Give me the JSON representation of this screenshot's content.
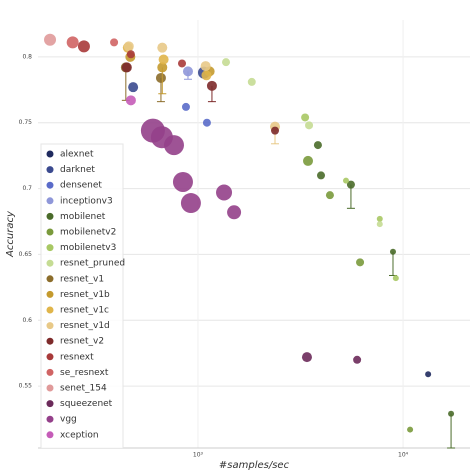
{
  "chart_data": {
    "type": "scatter",
    "x_label": "#samples/sec",
    "y_label": "Accuracy",
    "xscale": "log",
    "xlim": [
      166,
      21200
    ],
    "ylim": [
      0.503,
      0.828
    ],
    "xticks": [
      {
        "value": 1000,
        "label": "10³"
      },
      {
        "value": 10000,
        "label": "10⁴"
      }
    ],
    "yticks": [
      0.55,
      0.6,
      0.65,
      0.7,
      0.75,
      0.8
    ],
    "grid": true,
    "legend": "left",
    "series": [
      {
        "name": "alexnet",
        "color": "#1f2a5e",
        "x": [
          13250
        ],
        "values": [
          0.559
        ],
        "sizes": [
          3
        ],
        "errors": [
          null
        ]
      },
      {
        "name": "darknet",
        "color": "#3b4a8f",
        "x": [
          483,
          1070
        ],
        "values": [
          0.777,
          0.788
        ],
        "sizes": [
          5,
          6
        ],
        "errors": [
          null,
          null
        ]
      },
      {
        "name": "densenet",
        "color": "#5a6bc9",
        "x": [
          874,
          1106
        ],
        "values": [
          0.762,
          0.75
        ],
        "sizes": [
          4,
          4
        ],
        "errors": [
          null,
          null
        ]
      },
      {
        "name": "inceptionv3",
        "color": "#8f97d9",
        "x": [
          894
        ],
        "values": [
          0.789
        ],
        "sizes": [
          5
        ],
        "errors": [
          0.006
        ]
      },
      {
        "name": "mobilenet",
        "color": "#4a6b2a",
        "x": [
          3845,
          3980,
          5570,
          8930,
          17140
        ],
        "values": [
          0.733,
          0.71,
          0.703,
          0.652,
          0.529
        ],
        "sizes": [
          4,
          4,
          4,
          3,
          3
        ],
        "errors": [
          null,
          null,
          0.018,
          0.018,
          0.026
        ]
      },
      {
        "name": "mobilenetv2",
        "color": "#7a9a3c",
        "x": [
          3440,
          4400,
          6170,
          10820
        ],
        "values": [
          0.721,
          0.695,
          0.644,
          0.517
        ],
        "sizes": [
          5,
          4,
          4,
          3
        ],
        "errors": [
          null,
          null,
          null,
          null
        ]
      },
      {
        "name": "mobilenetv3",
        "color": "#a8c864",
        "x": [
          3330,
          5270,
          7700,
          9220
        ],
        "values": [
          0.754,
          0.706,
          0.677,
          0.632
        ],
        "sizes": [
          4,
          3,
          3,
          3
        ],
        "errors": [
          null,
          null,
          null,
          null
        ]
      },
      {
        "name": "resnet_pruned",
        "color": "#c5dc94",
        "x": [
          1830,
          3480,
          1370,
          7700
        ],
        "values": [
          0.781,
          0.748,
          0.796,
          0.673
        ],
        "sizes": [
          4,
          4,
          4,
          3
        ],
        "errors": [
          null,
          null,
          null,
          null
        ]
      },
      {
        "name": "resnet_v1",
        "color": "#8c6d2b",
        "x": [
          445,
          660
        ],
        "values": [
          0.792,
          0.784
        ],
        "sizes": [
          5,
          5
        ],
        "errors": [
          0.025,
          0.018
        ]
      },
      {
        "name": "resnet_v1b",
        "color": "#c49a2e",
        "x": [
          468,
          670,
          1140
        ],
        "values": [
          0.8,
          0.792,
          0.789
        ],
        "sizes": [
          5,
          5,
          5
        ],
        "errors": [
          null,
          0.02,
          null
        ]
      },
      {
        "name": "resnet_v1c",
        "color": "#e0b54a",
        "x": [
          455,
          680,
          1100
        ],
        "values": [
          0.807,
          0.798,
          0.786
        ],
        "sizes": [
          5,
          5,
          5
        ],
        "errors": [
          null,
          null,
          null
        ]
      },
      {
        "name": "resnet_v1d",
        "color": "#e8c987",
        "x": [
          460,
          670,
          1090,
          2375
        ],
        "values": [
          0.808,
          0.807,
          0.793,
          0.747
        ],
        "sizes": [
          5,
          5,
          5,
          5
        ],
        "errors": [
          null,
          null,
          null,
          0.013
        ]
      },
      {
        "name": "resnet_v2",
        "color": "#7d2a2a",
        "x": [
          450,
          1170,
          2375
        ],
        "values": [
          0.792,
          0.778,
          0.744
        ],
        "sizes": [
          5,
          5,
          4
        ],
        "errors": [
          null,
          0.012,
          null
        ]
      },
      {
        "name": "resnext",
        "color": "#a83a3a",
        "x": [
          278,
          471,
          836
        ],
        "values": [
          0.808,
          0.802,
          0.795
        ],
        "sizes": [
          6,
          4,
          4
        ],
        "errors": [
          null,
          null,
          null
        ]
      },
      {
        "name": "se_resnext",
        "color": "#d06464",
        "x": [
          245,
          390
        ],
        "values": [
          0.811,
          0.811
        ],
        "sizes": [
          6,
          4
        ],
        "errors": [
          null,
          null
        ]
      },
      {
        "name": "senet_154",
        "color": "#e09a9a",
        "x": [
          190
        ],
        "values": [
          0.813
        ],
        "sizes": [
          6
        ],
        "errors": [
          null
        ]
      },
      {
        "name": "squeezenet",
        "color": "#6b2a5a",
        "x": [
          3400,
          5970
        ],
        "values": [
          0.572,
          0.57
        ],
        "sizes": [
          5,
          4
        ],
        "errors": [
          null,
          null
        ]
      },
      {
        "name": "vgg",
        "color": "#94408a",
        "x": [
          603,
          667,
          764,
          845,
          924,
          1340,
          1500
        ],
        "values": [
          0.744,
          0.739,
          0.733,
          0.705,
          0.689,
          0.697,
          0.682
        ],
        "sizes": [
          12,
          11,
          10,
          10,
          10,
          8,
          7
        ],
        "errors": [
          null,
          null,
          null,
          null,
          null,
          null,
          null
        ]
      },
      {
        "name": "xception",
        "color": "#c55cb8",
        "x": [
          471
        ],
        "values": [
          0.767
        ],
        "sizes": [
          5
        ],
        "errors": [
          null
        ]
      }
    ]
  }
}
